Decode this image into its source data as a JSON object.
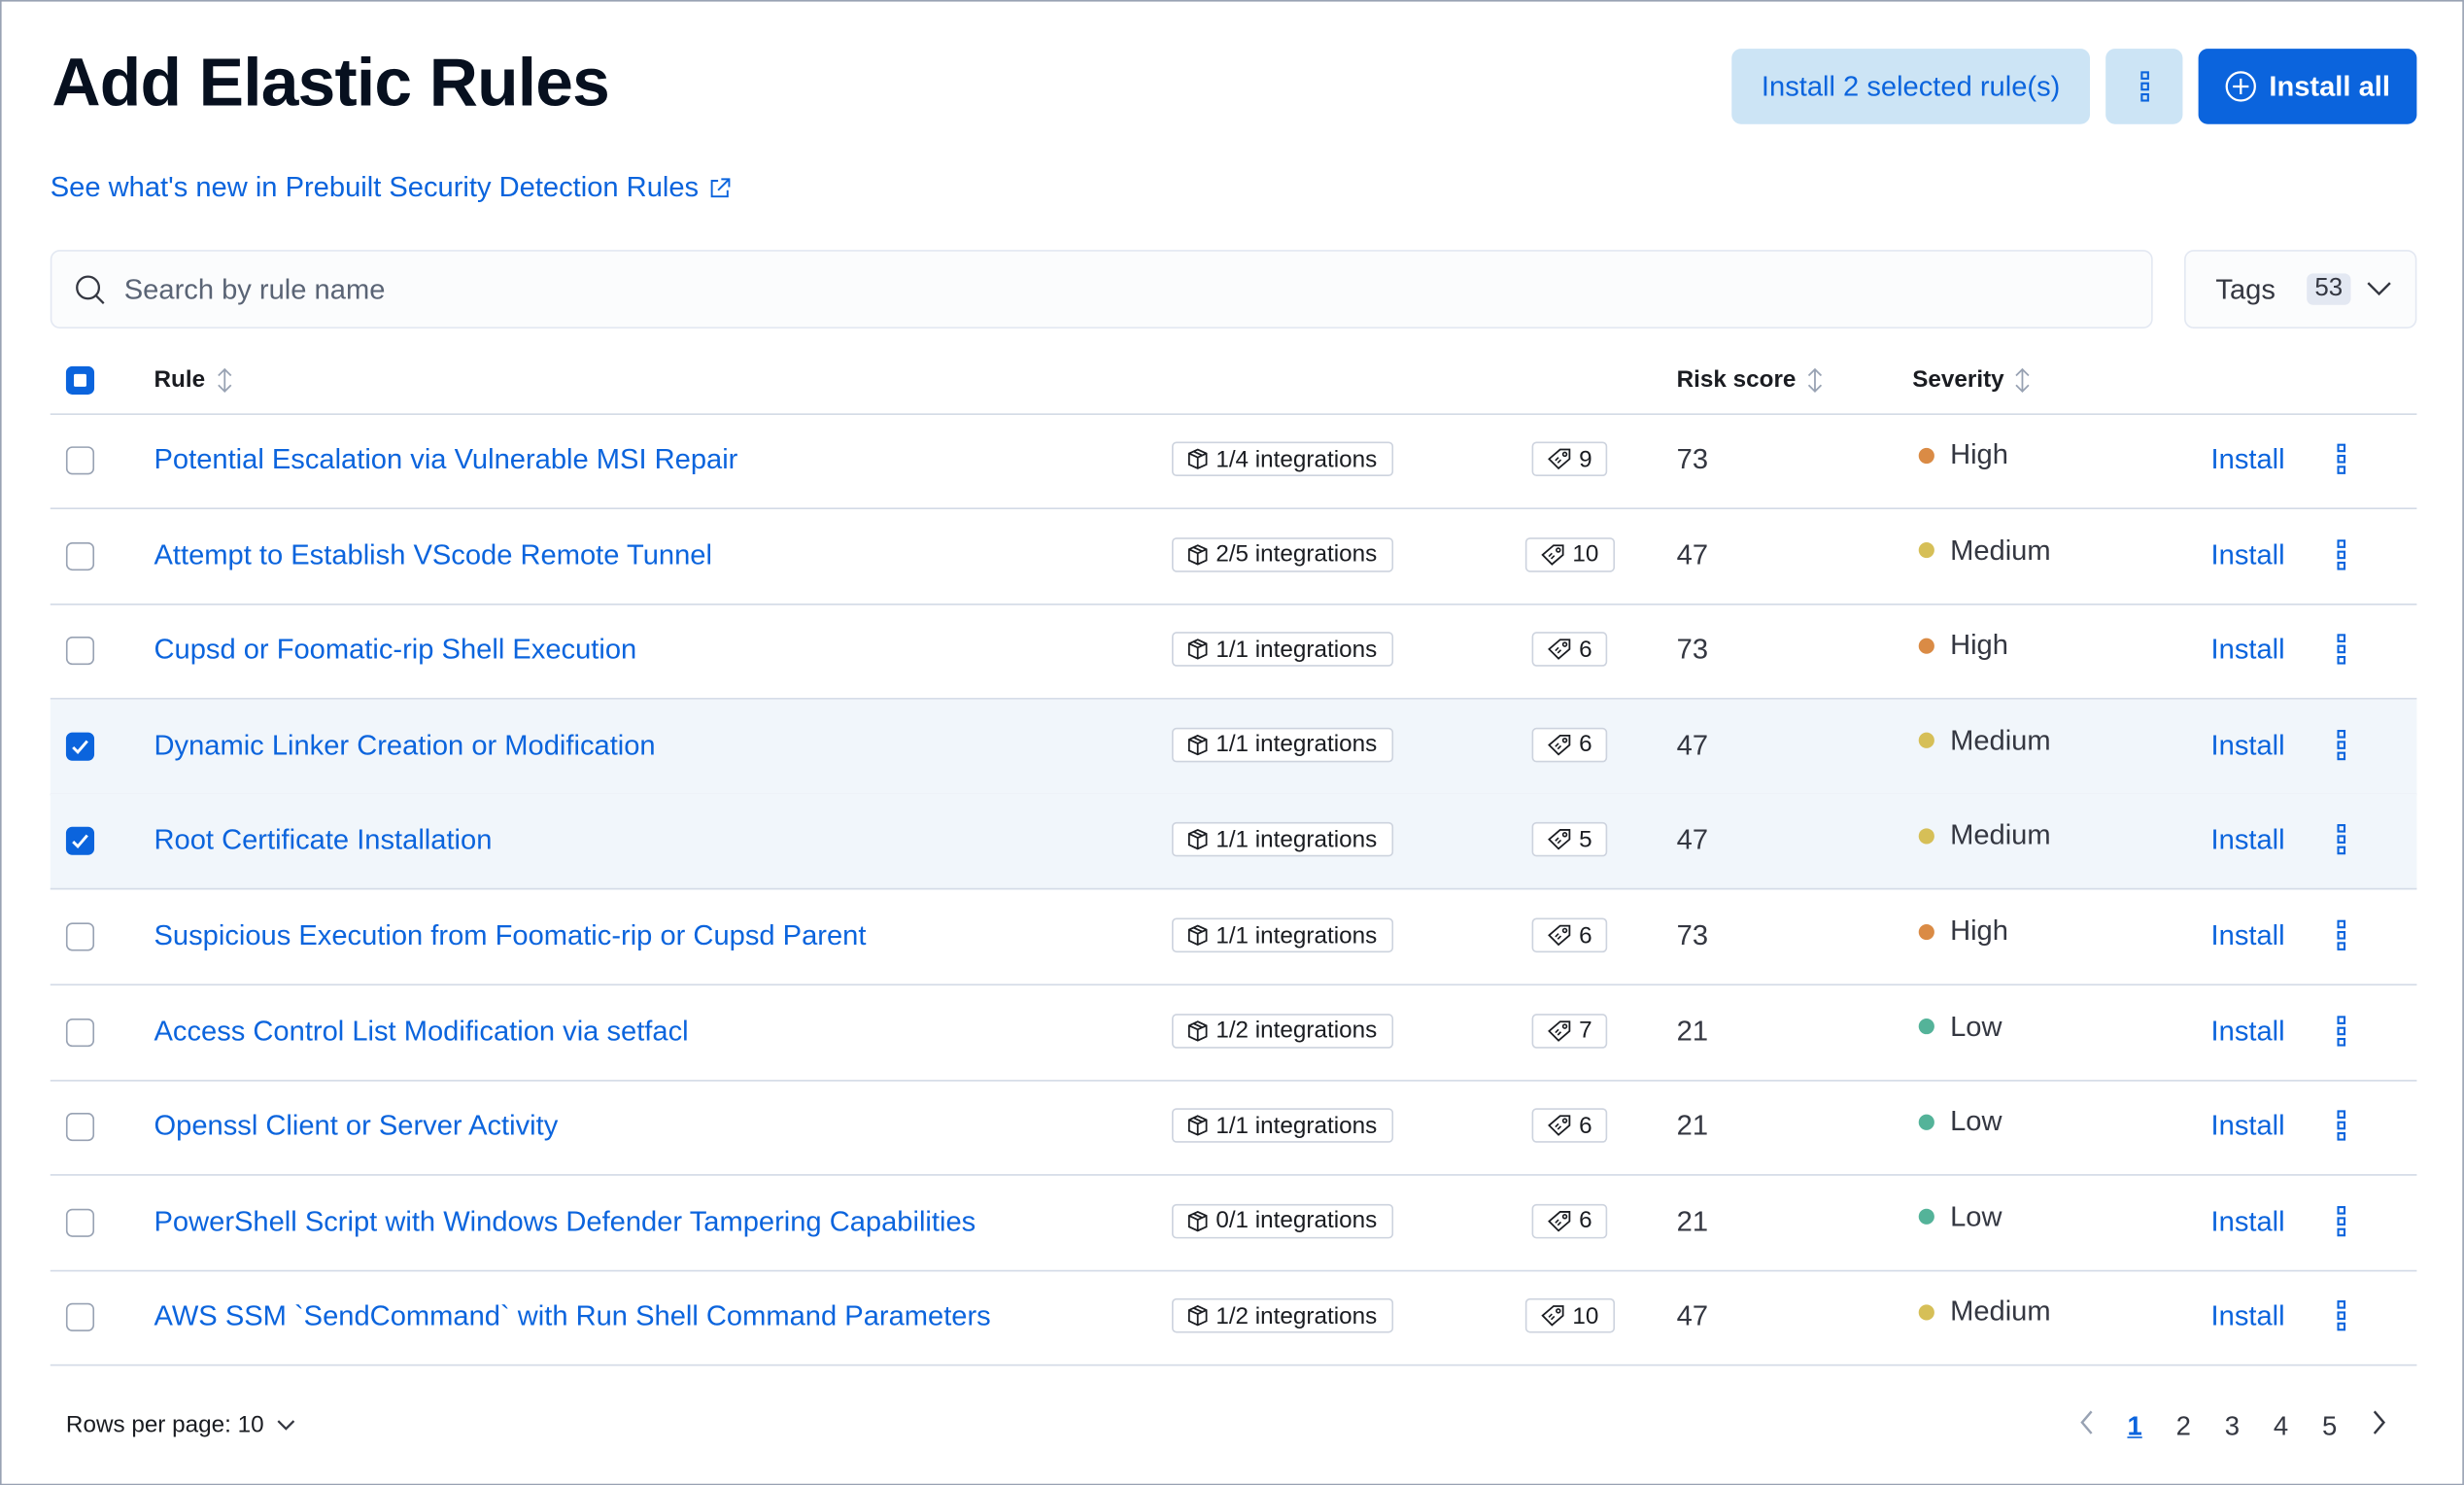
{
  "header": {
    "title": "Add Elastic Rules",
    "install_selected_label": "Install 2 selected rule(s)",
    "install_all_label": "Install all",
    "whats_new_link": "See what's new in Prebuilt Security Detection Rules"
  },
  "search": {
    "placeholder": "Search by rule name",
    "value": ""
  },
  "tags_filter": {
    "label": "Tags",
    "count": "53"
  },
  "table": {
    "columns": {
      "rule": "Rule",
      "risk_score": "Risk score",
      "severity": "Severity"
    },
    "install_label": "Install",
    "rows": [
      {
        "name": "Potential Escalation via Vulnerable MSI Repair",
        "integrations": "1/4 integrations",
        "tags": "9",
        "risk": "73",
        "severity": "High",
        "selected": false
      },
      {
        "name": "Attempt to Establish VScode Remote Tunnel",
        "integrations": "2/5 integrations",
        "tags": "10",
        "risk": "47",
        "severity": "Medium",
        "selected": false
      },
      {
        "name": "Cupsd or Foomatic-rip Shell Execution",
        "integrations": "1/1 integrations",
        "tags": "6",
        "risk": "73",
        "severity": "High",
        "selected": false
      },
      {
        "name": "Dynamic Linker Creation or Modification",
        "integrations": "1/1 integrations",
        "tags": "6",
        "risk": "47",
        "severity": "Medium",
        "selected": true
      },
      {
        "name": "Root Certificate Installation",
        "integrations": "1/1 integrations",
        "tags": "5",
        "risk": "47",
        "severity": "Medium",
        "selected": true
      },
      {
        "name": "Suspicious Execution from Foomatic-rip or Cupsd Parent",
        "integrations": "1/1 integrations",
        "tags": "6",
        "risk": "73",
        "severity": "High",
        "selected": false
      },
      {
        "name": "Access Control List Modification via setfacl",
        "integrations": "1/2 integrations",
        "tags": "7",
        "risk": "21",
        "severity": "Low",
        "selected": false
      },
      {
        "name": "Openssl Client or Server Activity",
        "integrations": "1/1 integrations",
        "tags": "6",
        "risk": "21",
        "severity": "Low",
        "selected": false
      },
      {
        "name": "PowerShell Script with Windows Defender Tampering Capabilities",
        "integrations": "0/1 integrations",
        "tags": "6",
        "risk": "21",
        "severity": "Low",
        "selected": false
      },
      {
        "name": "AWS SSM `SendCommand` with Run Shell Command Parameters",
        "integrations": "1/2 integrations",
        "tags": "10",
        "risk": "47",
        "severity": "Medium",
        "selected": false
      }
    ]
  },
  "severity_colors": {
    "High": "#da8b45",
    "Medium": "#d6bf57",
    "Low": "#54b399"
  },
  "accent_color": "#0b64dd",
  "pagination": {
    "rows_per_page": "Rows per page: 10",
    "pages": [
      "1",
      "2",
      "3",
      "4",
      "5"
    ],
    "current": "1"
  }
}
